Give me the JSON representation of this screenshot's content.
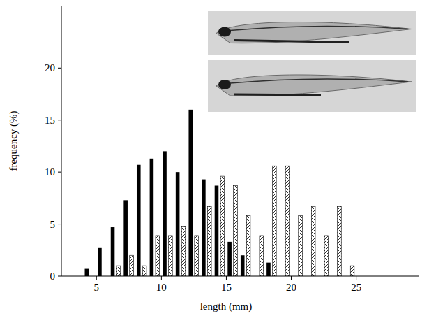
{
  "chart_data": {
    "type": "histogram",
    "x_label": "length (mm)",
    "y_label": "frequency (%)",
    "bins": [
      4,
      5,
      6,
      7,
      8,
      9,
      10,
      11,
      12,
      13,
      14,
      15,
      16,
      17,
      18,
      19,
      20,
      21,
      22,
      23,
      24,
      25
    ],
    "series": [
      {
        "color": "#000000",
        "values": [
          0.7,
          2.7,
          4.7,
          7.3,
          10.7,
          11.3,
          12,
          10,
          16,
          9.3,
          8.7,
          3.3,
          2,
          0,
          1.3,
          0,
          0,
          0,
          0,
          0,
          0
        ]
      },
      {
        "color": "#ffffff",
        "values": [
          0,
          0,
          1,
          2,
          1,
          3.9,
          3.9,
          4.8,
          3.9,
          6.7,
          9.6,
          8.7,
          5.8,
          3.9,
          10.6,
          10.6,
          5.8,
          6.7,
          3.9,
          6.7,
          1
        ]
      }
    ],
    "xlim": [
      2.3,
      29.8
    ],
    "xticks": [
      5,
      10,
      15,
      20,
      25
    ],
    "ylim": [
      0,
      26
    ],
    "yticks": [
      0,
      5,
      10,
      15,
      20
    ],
    "grid": false
  }
}
